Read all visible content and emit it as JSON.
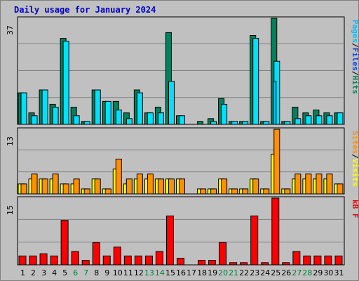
{
  "colors": {
    "frame_bg": "#c0c0c0",
    "plot_bg": "#c0c0c0",
    "hits": "#00805c",
    "files": "#00e0ff",
    "pages": "#00c0ff",
    "visits": "#ffff00",
    "sites": "#ff9000",
    "kbytes": "#ff0000",
    "title": "#0000cc",
    "weekend_label": "#008040",
    "weekday_label": "#000000",
    "gridline": "#808080"
  },
  "chart_data": [
    {
      "type": "bar",
      "title": "Daily usage for January 2024",
      "ymax_label": "37",
      "ylim": [
        0,
        37
      ],
      "legend": [
        {
          "label": "Pages",
          "color": "#00c0ff"
        },
        {
          "sep": "/"
        },
        {
          "label": "Files",
          "color": "#0040ff"
        },
        {
          "sep": "/"
        },
        {
          "label": "Hits",
          "color": "#00805c"
        }
      ],
      "categories": [
        "1",
        "2",
        "3",
        "4",
        "5",
        "6",
        "7",
        "8",
        "9",
        "10",
        "11",
        "12",
        "13",
        "14",
        "15",
        "16",
        "17",
        "18",
        "19",
        "20",
        "21",
        "22",
        "23",
        "24",
        "25",
        "26",
        "27",
        "28",
        "29",
        "30",
        "31"
      ],
      "weekend": [
        "6",
        "7",
        "13",
        "14",
        "20",
        "21",
        "27",
        "28"
      ],
      "series": [
        {
          "name": "Hits",
          "values": [
            11,
            4,
            12,
            7,
            30,
            6,
            1,
            12,
            8,
            8,
            4,
            12,
            4,
            6,
            32,
            3,
            0,
            1,
            2,
            9,
            1,
            1,
            31,
            1,
            37,
            1,
            6,
            4,
            5,
            4,
            4
          ]
        },
        {
          "name": "Files",
          "values": [
            11,
            3,
            12,
            6,
            29,
            3,
            1,
            12,
            8,
            5,
            2,
            11,
            4,
            4,
            15,
            3,
            0,
            0,
            1,
            7,
            1,
            1,
            30,
            1,
            22,
            1,
            2,
            3,
            3,
            3,
            4
          ]
        },
        {
          "name": "Pages",
          "values": [
            0,
            0,
            0,
            0,
            0,
            0,
            0,
            0,
            0,
            0,
            0,
            0,
            0,
            0,
            0,
            0,
            0,
            0,
            0,
            0,
            0,
            0,
            0,
            0,
            15,
            0,
            0,
            0,
            0,
            0,
            0
          ]
        }
      ]
    },
    {
      "type": "bar",
      "ymax_label": "13",
      "ylim": [
        0,
        13
      ],
      "legend": [
        {
          "label": "Sites",
          "color": "#ff9000"
        },
        {
          "sep": "/"
        },
        {
          "label": "Visits",
          "color": "#ffff00"
        }
      ],
      "series": [
        {
          "name": "Visits",
          "values": [
            2,
            3,
            3,
            3,
            2,
            2,
            1,
            3,
            1,
            5,
            2,
            3,
            3,
            3,
            3,
            3,
            0,
            1,
            1,
            3,
            1,
            1,
            3,
            1,
            8,
            1,
            3,
            3,
            3,
            3,
            2
          ]
        },
        {
          "name": "Sites",
          "values": [
            2,
            4,
            3,
            4,
            2,
            3,
            1,
            3,
            1,
            7,
            3,
            4,
            4,
            3,
            3,
            3,
            0,
            1,
            1,
            3,
            1,
            1,
            3,
            1,
            13,
            1,
            4,
            4,
            4,
            4,
            2
          ]
        }
      ]
    },
    {
      "type": "bar",
      "ymax_label": "15",
      "ylim": [
        0,
        15
      ],
      "legend": [
        {
          "label": "kB F",
          "color": "#ff0000"
        }
      ],
      "series": [
        {
          "name": "kB F",
          "values": [
            2,
            2,
            2.5,
            2,
            10,
            3,
            1,
            5,
            2,
            4,
            2,
            2,
            2,
            3,
            11,
            1.5,
            0,
            1,
            1,
            5,
            0.5,
            0.5,
            11,
            0.5,
            15,
            0.5,
            3,
            2,
            2,
            2,
            2
          ]
        }
      ]
    }
  ]
}
